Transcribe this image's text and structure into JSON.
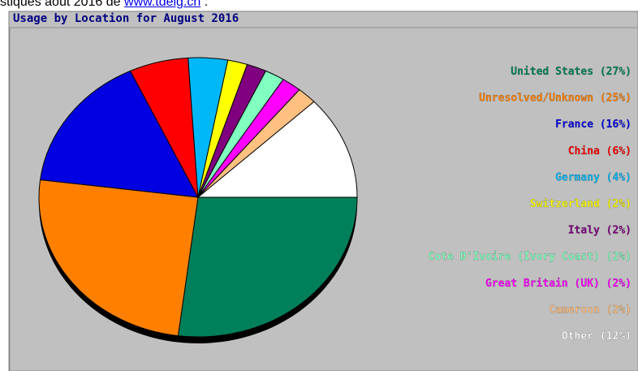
{
  "caption": {
    "text": "stiques août 2016 de ",
    "link": "www.tdeig.ch",
    "end": " :"
  },
  "chart_data": {
    "type": "pie",
    "title": "Usage by Location for August 2016",
    "categories": [
      "United States",
      "Unresolved/Unknown",
      "France",
      "China",
      "Germany",
      "Switzerland",
      "Italy",
      "Cote D'Ivoire (Ivory Coast)",
      "Great Britain (UK)",
      "Cameroon",
      "Other"
    ],
    "values": [
      27,
      25,
      16,
      6,
      4,
      2,
      2,
      2,
      2,
      2,
      12
    ],
    "value_labels": [
      "(27%)",
      "(25%)",
      "(16%)",
      "(6%)",
      "(4%)",
      "(2%)",
      "(2%)",
      "(2%)",
      "(2%)",
      "(2%)",
      "(12%)"
    ],
    "colors": [
      "#00805a",
      "#ff8000",
      "#0000e0",
      "#ff0000",
      "#00b8f8",
      "#ffff00",
      "#800080",
      "#80ffc0",
      "#ff00ff",
      "#ffc080",
      "#ffffff"
    ]
  }
}
